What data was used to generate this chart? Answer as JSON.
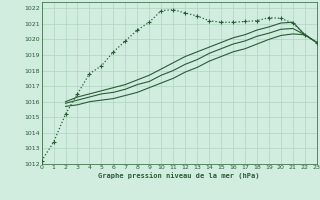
{
  "title": "Graphe pression niveau de la mer (hPa)",
  "bg_color": "#d0ede0",
  "grid_color": "#b0d4c0",
  "line_color": "#2a5c34",
  "xlim": [
    0,
    23
  ],
  "ylim": [
    1012,
    1022.4
  ],
  "xticks": [
    0,
    1,
    2,
    3,
    4,
    5,
    6,
    7,
    8,
    9,
    10,
    11,
    12,
    13,
    14,
    15,
    16,
    17,
    18,
    19,
    20,
    21,
    22,
    23
  ],
  "yticks": [
    1012,
    1013,
    1014,
    1015,
    1016,
    1017,
    1018,
    1019,
    1020,
    1021,
    1022
  ],
  "s1_x": [
    0,
    1,
    2,
    3,
    4,
    5,
    6,
    7,
    8,
    9,
    10,
    11,
    12,
    13,
    14,
    15,
    16,
    17,
    18,
    19,
    20,
    21,
    22,
    23
  ],
  "s1_y": [
    1012.2,
    1013.4,
    1015.2,
    1016.5,
    1017.8,
    1018.3,
    1019.2,
    1019.9,
    1020.6,
    1021.1,
    1021.85,
    1021.9,
    1021.7,
    1021.5,
    1021.2,
    1021.1,
    1021.1,
    1021.15,
    1021.2,
    1021.4,
    1021.35,
    1021.05,
    1020.3,
    1019.8
  ],
  "s2_x": [
    2,
    3,
    4,
    5,
    6,
    7,
    8,
    9,
    10,
    11,
    12,
    13,
    14,
    15,
    16,
    17,
    18,
    19,
    20,
    21,
    22,
    23
  ],
  "s2_y": [
    1016.0,
    1016.3,
    1016.5,
    1016.7,
    1016.9,
    1017.1,
    1017.4,
    1017.7,
    1018.1,
    1018.5,
    1018.9,
    1019.2,
    1019.5,
    1019.8,
    1020.1,
    1020.3,
    1020.6,
    1020.8,
    1021.05,
    1021.1,
    1020.3,
    1019.8
  ],
  "s3_x": [
    2,
    3,
    4,
    5,
    6,
    7,
    8,
    9,
    10,
    11,
    12,
    13,
    14,
    15,
    16,
    17,
    18,
    19,
    20,
    21,
    22,
    23
  ],
  "s3_y": [
    1015.9,
    1016.1,
    1016.3,
    1016.5,
    1016.6,
    1016.8,
    1017.1,
    1017.3,
    1017.7,
    1018.0,
    1018.4,
    1018.7,
    1019.1,
    1019.4,
    1019.7,
    1019.9,
    1020.2,
    1020.4,
    1020.65,
    1020.7,
    1020.3,
    1019.8
  ],
  "s4_x": [
    2,
    3,
    4,
    5,
    6,
    7,
    8,
    9,
    10,
    11,
    12,
    13,
    14,
    15,
    16,
    17,
    18,
    19,
    20,
    21,
    22,
    23
  ],
  "s4_y": [
    1015.7,
    1015.8,
    1016.0,
    1016.1,
    1016.2,
    1016.4,
    1016.6,
    1016.9,
    1017.2,
    1017.5,
    1017.9,
    1018.2,
    1018.6,
    1018.9,
    1019.2,
    1019.4,
    1019.7,
    1020.0,
    1020.25,
    1020.35,
    1020.3,
    1019.8
  ]
}
